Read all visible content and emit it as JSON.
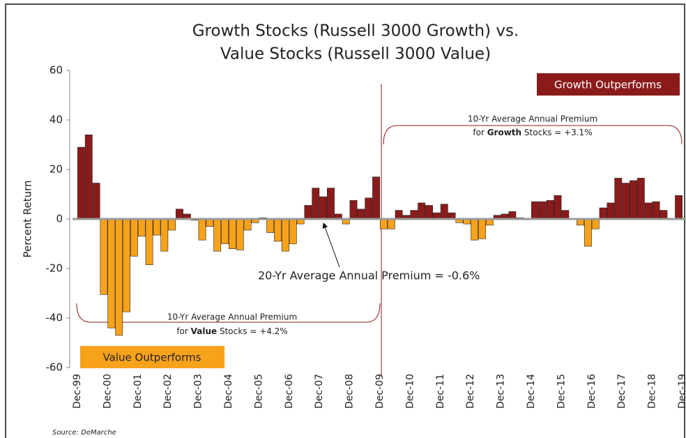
{
  "chart_data": {
    "type": "bar",
    "title": [
      "Growth Stocks (Russell 3000 Growth) vs.",
      "Value Stocks (Russell 3000 Value)"
    ],
    "y_label": "Percent Return",
    "source": "Source:  DeMarche",
    "ylim": [
      -60,
      60
    ],
    "yticks": [
      -60,
      -40,
      -20,
      0,
      20,
      40,
      60
    ],
    "colors": {
      "positive": "#8b1b1b",
      "negative": "#f7a21b"
    },
    "categories": [
      "Dec-99",
      null,
      null,
      null,
      "Dec-00",
      null,
      null,
      null,
      "Dec-01",
      null,
      null,
      null,
      "Dec-02",
      null,
      null,
      null,
      "Dec-03",
      null,
      null,
      null,
      "Dec-04",
      null,
      null,
      null,
      "Dec-05",
      null,
      null,
      null,
      "Dec-06",
      null,
      null,
      null,
      "Dec-07",
      null,
      null,
      null,
      "Dec-08",
      null,
      null,
      null,
      "Dec-09",
      null,
      null,
      null,
      "Dec-10",
      null,
      null,
      null,
      "Dec-11",
      null,
      null,
      null,
      "Dec-12",
      null,
      null,
      null,
      "Dec-13",
      null,
      null,
      null,
      "Dec-14",
      null,
      null,
      null,
      "Dec-15",
      null,
      null,
      null,
      "Dec-16",
      null,
      null,
      null,
      "Dec-17",
      null,
      null,
      null,
      "Dec-18",
      null,
      null,
      null,
      "Dec-19"
    ],
    "values": [
      null,
      29,
      34,
      14.5,
      -30.5,
      -44,
      -47,
      -37.5,
      -15,
      -7,
      -18.5,
      -6.5,
      -13,
      -4.5,
      4,
      2,
      -0.5,
      -8.5,
      -3,
      -13,
      -10,
      -12,
      -12.5,
      -4.5,
      -1.5,
      0.5,
      -5.5,
      -9,
      -13,
      -10,
      -2,
      5.5,
      12.5,
      9,
      12.5,
      2,
      -2,
      7.5,
      4,
      8.5,
      17,
      -4,
      -4,
      3.5,
      1.5,
      3.5,
      6.5,
      5.5,
      2.5,
      6,
      2.5,
      -1.5,
      -2,
      -8.5,
      -8,
      -2.5,
      1.5,
      2,
      3,
      0.5,
      0,
      7,
      7,
      7.5,
      9.5,
      3.5,
      0,
      -2.5,
      -11,
      -4,
      4.5,
      6.5,
      16.5,
      14.5,
      15.5,
      16.5,
      6.5,
      7,
      3.5,
      0,
      9.5
    ],
    "annotations": {
      "growth_box": "Growth Outperforms",
      "value_box": "Value Outperforms",
      "growth_premium": [
        "10-Yr Average Annual Premium",
        "for ",
        "Growth",
        " Stocks = +3.1%"
      ],
      "value_premium": [
        "10-Yr Average Annual Premium",
        "for ",
        "Value",
        " Stocks = +4.2%"
      ],
      "overall_premium": "20-Yr Average Annual Premium =  -0.6%"
    }
  }
}
